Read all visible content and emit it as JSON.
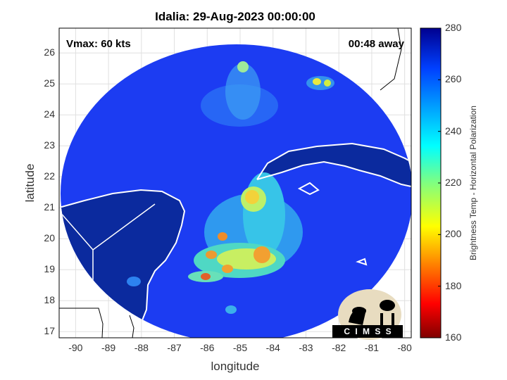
{
  "title": "Idalia: 29-Aug-2023 00:00:00",
  "overlays": {
    "vmax": "Vmax: 60 kts",
    "away": "00:48 away"
  },
  "axes": {
    "xlabel": "longitude",
    "ylabel": "latitude",
    "xlim": [
      -90.5,
      -79.8
    ],
    "ylim": [
      16.8,
      26.8
    ],
    "xticks": [
      "-90",
      "-89",
      "-88",
      "-87",
      "-86",
      "-85",
      "-84",
      "-83",
      "-82",
      "-81",
      "-80"
    ],
    "yticks": [
      "17",
      "18",
      "19",
      "20",
      "21",
      "22",
      "23",
      "24",
      "25",
      "26"
    ]
  },
  "colorbar": {
    "label": "Brightness Temp - Horizontal Polarization",
    "range": [
      160,
      280
    ],
    "ticks": [
      "160",
      "180",
      "200",
      "220",
      "240",
      "260",
      "280"
    ],
    "colormap": "jet"
  },
  "logo": {
    "text": "C I M S S"
  },
  "colors": {
    "background_ocean": "#1a3ff0",
    "land": "#0a2a9c",
    "coast": "#ffffff",
    "outside": "#ffffff"
  }
}
